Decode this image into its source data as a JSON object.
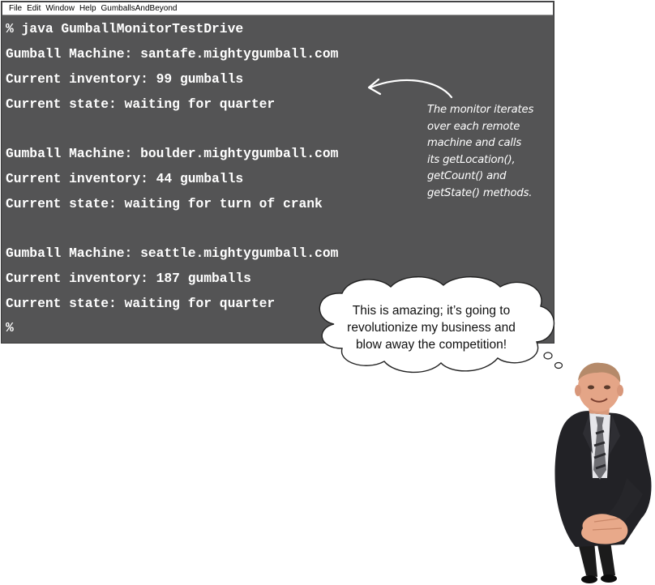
{
  "menubar": {
    "items": [
      "File",
      "Edit",
      "Window",
      "Help",
      "GumballsAndBeyond"
    ]
  },
  "terminal": {
    "lines": [
      "% java GumballMonitorTestDrive",
      "Gumball Machine: santafe.mightygumball.com",
      "Current inventory: 99 gumballs",
      "Current state: waiting for quarter",
      "Gumball Machine: boulder.mightygumball.com",
      "Current inventory: 44 gumballs",
      "Current state: waiting for turn of crank",
      "Gumball Machine: seattle.mightygumball.com",
      "Current inventory: 187 gumballs",
      "Current state: waiting for quarter",
      "%"
    ]
  },
  "annotation": {
    "lines": [
      "The monitor iterates",
      "over each remote",
      "machine and calls",
      "its getLocation(),",
      "getCount() and",
      "getState() methods."
    ]
  },
  "speech_bubble": {
    "lines": [
      "This is amazing; it’s going to",
      "revolutionize my business and",
      "blow away the competition!"
    ]
  },
  "colors": {
    "terminal_background": "#545455",
    "terminal_text": "#ffffff",
    "menubar_background": "#ffffff"
  },
  "icons": {
    "arrow": "curved-arrow-icon",
    "person": "businessman-illustration"
  }
}
